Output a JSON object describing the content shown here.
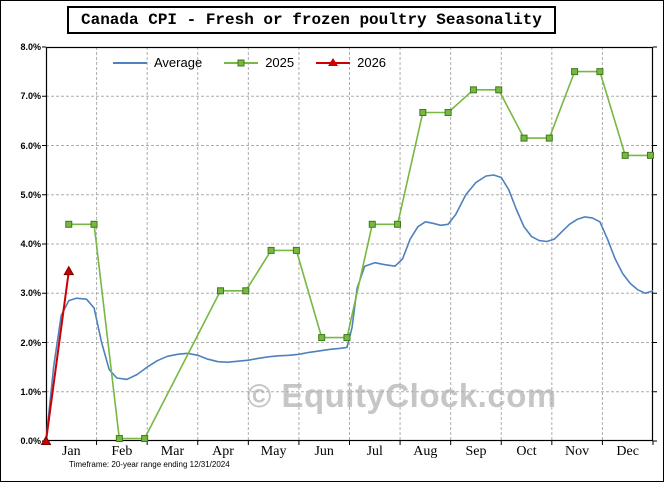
{
  "chart_data": {
    "type": "line",
    "title": "Canada CPI - Fresh or frozen poultry Seasonality",
    "watermark": "© EquityClock.com",
    "footnote": "Timeframe: 20-year range ending 12/31/2024",
    "x_unit": "month_fraction_0_to_12",
    "x_axis": {
      "categories": [
        "Jan",
        "Feb",
        "Mar",
        "Apr",
        "May",
        "Jun",
        "Jul",
        "Aug",
        "Sep",
        "Oct",
        "Nov",
        "Dec"
      ]
    },
    "y_axis": {
      "min": 0,
      "max": 8,
      "tick_step": 1,
      "tick_labels": [
        "0.0%",
        "1.0%",
        "2.0%",
        "3.0%",
        "4.0%",
        "5.0%",
        "6.0%",
        "7.0%",
        "8.0%"
      ]
    },
    "grid": true,
    "legend": {
      "position": "top-inside",
      "items": [
        {
          "label": "Average",
          "color": "#4f81bd",
          "marker": "none"
        },
        {
          "label": "2025",
          "color": "#77b843",
          "marker": "square"
        },
        {
          "label": "2026",
          "color": "#cc0000",
          "marker": "triangle"
        }
      ]
    },
    "series": [
      {
        "name": "Average",
        "color": "#4f81bd",
        "width": 1.6,
        "marker": "none",
        "points": [
          [
            0,
            0
          ],
          [
            0.15,
            1.5
          ],
          [
            0.3,
            2.55
          ],
          [
            0.45,
            2.85
          ],
          [
            0.6,
            2.9
          ],
          [
            0.8,
            2.88
          ],
          [
            0.95,
            2.7
          ],
          [
            1.1,
            2.0
          ],
          [
            1.25,
            1.45
          ],
          [
            1.4,
            1.28
          ],
          [
            1.6,
            1.25
          ],
          [
            1.8,
            1.35
          ],
          [
            2.0,
            1.5
          ],
          [
            2.2,
            1.63
          ],
          [
            2.4,
            1.72
          ],
          [
            2.6,
            1.76
          ],
          [
            2.8,
            1.78
          ],
          [
            3.0,
            1.74
          ],
          [
            3.2,
            1.66
          ],
          [
            3.4,
            1.61
          ],
          [
            3.6,
            1.6
          ],
          [
            3.8,
            1.62
          ],
          [
            4.0,
            1.64
          ],
          [
            4.2,
            1.68
          ],
          [
            4.4,
            1.71
          ],
          [
            4.6,
            1.73
          ],
          [
            4.8,
            1.74
          ],
          [
            5.0,
            1.76
          ],
          [
            5.2,
            1.8
          ],
          [
            5.4,
            1.83
          ],
          [
            5.6,
            1.86
          ],
          [
            5.8,
            1.88
          ],
          [
            5.95,
            1.9
          ],
          [
            6.05,
            2.3
          ],
          [
            6.15,
            3.1
          ],
          [
            6.3,
            3.55
          ],
          [
            6.5,
            3.62
          ],
          [
            6.7,
            3.58
          ],
          [
            6.9,
            3.55
          ],
          [
            7.05,
            3.7
          ],
          [
            7.2,
            4.1
          ],
          [
            7.35,
            4.35
          ],
          [
            7.5,
            4.45
          ],
          [
            7.65,
            4.42
          ],
          [
            7.8,
            4.38
          ],
          [
            7.95,
            4.4
          ],
          [
            8.1,
            4.6
          ],
          [
            8.3,
            5.0
          ],
          [
            8.5,
            5.25
          ],
          [
            8.7,
            5.38
          ],
          [
            8.85,
            5.4
          ],
          [
            9.0,
            5.35
          ],
          [
            9.15,
            5.1
          ],
          [
            9.3,
            4.7
          ],
          [
            9.45,
            4.35
          ],
          [
            9.6,
            4.15
          ],
          [
            9.75,
            4.07
          ],
          [
            9.9,
            4.05
          ],
          [
            10.05,
            4.1
          ],
          [
            10.2,
            4.25
          ],
          [
            10.35,
            4.4
          ],
          [
            10.5,
            4.5
          ],
          [
            10.65,
            4.55
          ],
          [
            10.8,
            4.53
          ],
          [
            10.95,
            4.45
          ],
          [
            11.1,
            4.1
          ],
          [
            11.25,
            3.7
          ],
          [
            11.4,
            3.4
          ],
          [
            11.55,
            3.2
          ],
          [
            11.7,
            3.07
          ],
          [
            11.85,
            3.0
          ],
          [
            12.0,
            3.05
          ]
        ]
      },
      {
        "name": "2025",
        "color": "#77b843",
        "width": 1.6,
        "marker": "square",
        "marker_color": "#77b843",
        "marker_edge": "#3f7a1f",
        "points": [
          [
            0.45,
            4.4
          ],
          [
            0.95,
            4.4
          ],
          [
            1.45,
            0.05
          ],
          [
            1.95,
            0.05
          ],
          [
            3.45,
            3.05
          ],
          [
            3.95,
            3.05
          ],
          [
            4.45,
            3.87
          ],
          [
            4.95,
            3.87
          ],
          [
            5.45,
            2.1
          ],
          [
            5.95,
            2.1
          ],
          [
            6.45,
            4.4
          ],
          [
            6.95,
            4.4
          ],
          [
            7.45,
            6.67
          ],
          [
            7.95,
            6.67
          ],
          [
            8.45,
            7.13
          ],
          [
            8.95,
            7.13
          ],
          [
            9.45,
            6.15
          ],
          [
            9.95,
            6.15
          ],
          [
            10.45,
            7.5
          ],
          [
            10.95,
            7.5
          ],
          [
            11.45,
            5.8
          ],
          [
            11.95,
            5.8
          ]
        ]
      },
      {
        "name": "2026",
        "color": "#cc0000",
        "width": 2,
        "marker": "triangle",
        "marker_color": "#cc0000",
        "marker_edge": "#7a0000",
        "points": [
          [
            0,
            0
          ],
          [
            0.45,
            3.45
          ]
        ]
      }
    ]
  }
}
